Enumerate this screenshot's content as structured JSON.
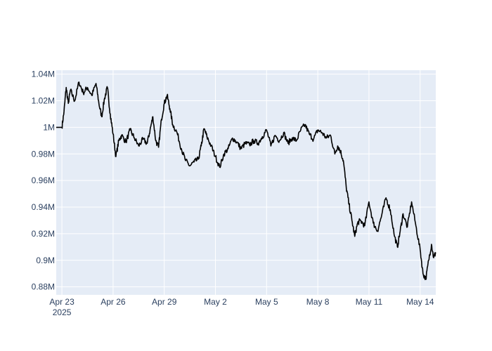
{
  "chart_data": {
    "type": "line",
    "title": "",
    "xlabel": "",
    "ylabel": "",
    "x_range": [
      "2025-04-22T16:00",
      "2025-05-14T22:00"
    ],
    "ylim": [
      874000,
      1043000
    ],
    "grid": true,
    "legend": "none",
    "x_ticks": [
      {
        "date": "2025-04-23",
        "label": "Apr 23",
        "sublabel": "2025"
      },
      {
        "date": "2025-04-26",
        "label": "Apr 26"
      },
      {
        "date": "2025-04-29",
        "label": "Apr 29"
      },
      {
        "date": "2025-05-02",
        "label": "May 2"
      },
      {
        "date": "2025-05-05",
        "label": "May 5"
      },
      {
        "date": "2025-05-08",
        "label": "May 8"
      },
      {
        "date": "2025-05-11",
        "label": "May 11"
      },
      {
        "date": "2025-05-14",
        "label": "May 14"
      }
    ],
    "y_ticks": [
      {
        "value": 880000,
        "label": "0.88M"
      },
      {
        "value": 900000,
        "label": "0.9M"
      },
      {
        "value": 920000,
        "label": "0.92M"
      },
      {
        "value": 940000,
        "label": "0.94M"
      },
      {
        "value": 960000,
        "label": "0.96M"
      },
      {
        "value": 980000,
        "label": "0.98M"
      },
      {
        "value": 1000000,
        "label": "1M"
      },
      {
        "value": 1020000,
        "label": "1.02M"
      },
      {
        "value": 1040000,
        "label": "1.04M"
      }
    ],
    "series": [
      {
        "color": "#000000",
        "points": [
          [
            "2025-04-22T16:00",
            1000000
          ],
          [
            "2025-04-23T00:00",
            1000000
          ],
          [
            "2025-04-23T03:00",
            1012000
          ],
          [
            "2025-04-23T06:00",
            1030000
          ],
          [
            "2025-04-23T09:00",
            1018000
          ],
          [
            "2025-04-23T12:00",
            1028000
          ],
          [
            "2025-04-23T18:00",
            1020000
          ],
          [
            "2025-04-24T00:00",
            1034000
          ],
          [
            "2025-04-24T06:00",
            1026000
          ],
          [
            "2025-04-24T12:00",
            1030000
          ],
          [
            "2025-04-24T18:00",
            1024000
          ],
          [
            "2025-04-25T00:00",
            1033000
          ],
          [
            "2025-04-25T04:00",
            1018000
          ],
          [
            "2025-04-25T08:00",
            1008000
          ],
          [
            "2025-04-25T12:00",
            1022000
          ],
          [
            "2025-04-25T16:00",
            1030000
          ],
          [
            "2025-04-25T20:00",
            1010000
          ],
          [
            "2025-04-26T00:00",
            995000
          ],
          [
            "2025-04-26T04:00",
            978000
          ],
          [
            "2025-04-26T08:00",
            990000
          ],
          [
            "2025-04-26T12:00",
            994000
          ],
          [
            "2025-04-26T18:00",
            989000
          ],
          [
            "2025-04-27T00:00",
            998000
          ],
          [
            "2025-04-27T06:00",
            992000
          ],
          [
            "2025-04-27T12:00",
            986000
          ],
          [
            "2025-04-27T18:00",
            991000
          ],
          [
            "2025-04-28T00:00",
            988000
          ],
          [
            "2025-04-28T04:00",
            998000
          ],
          [
            "2025-04-28T08:00",
            1008000
          ],
          [
            "2025-04-28T12:00",
            990000
          ],
          [
            "2025-04-28T16:00",
            985000
          ],
          [
            "2025-04-28T20:00",
            1006000
          ],
          [
            "2025-04-29T00:00",
            1018000
          ],
          [
            "2025-04-29T04:00",
            1024000
          ],
          [
            "2025-04-29T08:00",
            1014000
          ],
          [
            "2025-04-29T12:00",
            1002000
          ],
          [
            "2025-04-29T18:00",
            996000
          ],
          [
            "2025-04-30T00:00",
            984000
          ],
          [
            "2025-04-30T06:00",
            975000
          ],
          [
            "2025-04-30T12:00",
            971000
          ],
          [
            "2025-04-30T18:00",
            974000
          ],
          [
            "2025-05-01T00:00",
            976000
          ],
          [
            "2025-05-01T04:00",
            986000
          ],
          [
            "2025-05-01T08:00",
            999000
          ],
          [
            "2025-05-01T12:00",
            993000
          ],
          [
            "2025-05-01T18:00",
            986000
          ],
          [
            "2025-05-02T00:00",
            978000
          ],
          [
            "2025-05-02T06:00",
            970000
          ],
          [
            "2025-05-02T12:00",
            980000
          ],
          [
            "2025-05-02T18:00",
            984000
          ],
          [
            "2025-05-03T00:00",
            992000
          ],
          [
            "2025-05-03T06:00",
            989000
          ],
          [
            "2025-05-03T12:00",
            984000
          ],
          [
            "2025-05-03T18:00",
            988000
          ],
          [
            "2025-05-04T00:00",
            987000
          ],
          [
            "2025-05-04T06:00",
            990000
          ],
          [
            "2025-05-04T12:00",
            988000
          ],
          [
            "2025-05-04T18:00",
            993000
          ],
          [
            "2025-05-05T00:00",
            998000
          ],
          [
            "2025-05-05T06:00",
            986000
          ],
          [
            "2025-05-05T12:00",
            994000
          ],
          [
            "2025-05-05T18:00",
            990000
          ],
          [
            "2025-05-06T00:00",
            996000
          ],
          [
            "2025-05-06T06:00",
            988000
          ],
          [
            "2025-05-06T12:00",
            992000
          ],
          [
            "2025-05-06T18:00",
            990000
          ],
          [
            "2025-05-07T00:00",
            998000
          ],
          [
            "2025-05-07T06:00",
            1002000
          ],
          [
            "2025-05-07T12:00",
            995000
          ],
          [
            "2025-05-07T18:00",
            991000
          ],
          [
            "2025-05-08T00:00",
            998000
          ],
          [
            "2025-05-08T06:00",
            996000
          ],
          [
            "2025-05-08T12:00",
            992000
          ],
          [
            "2025-05-08T18:00",
            994000
          ],
          [
            "2025-05-09T00:00",
            980000
          ],
          [
            "2025-05-09T04:00",
            986000
          ],
          [
            "2025-05-09T08:00",
            982000
          ],
          [
            "2025-05-09T12:00",
            975000
          ],
          [
            "2025-05-09T16:00",
            955000
          ],
          [
            "2025-05-09T20:00",
            942000
          ],
          [
            "2025-05-10T00:00",
            930000
          ],
          [
            "2025-05-10T04:00",
            918000
          ],
          [
            "2025-05-10T08:00",
            928000
          ],
          [
            "2025-05-10T12:00",
            930000
          ],
          [
            "2025-05-10T18:00",
            926000
          ],
          [
            "2025-05-11T00:00",
            944000
          ],
          [
            "2025-05-11T06:00",
            928000
          ],
          [
            "2025-05-11T12:00",
            922000
          ],
          [
            "2025-05-11T18:00",
            934000
          ],
          [
            "2025-05-12T00:00",
            947000
          ],
          [
            "2025-05-12T06:00",
            938000
          ],
          [
            "2025-05-12T12:00",
            918000
          ],
          [
            "2025-05-12T16:00",
            910000
          ],
          [
            "2025-05-12T20:00",
            922000
          ],
          [
            "2025-05-13T00:00",
            935000
          ],
          [
            "2025-05-13T06:00",
            925000
          ],
          [
            "2025-05-13T12:00",
            944000
          ],
          [
            "2025-05-13T18:00",
            926000
          ],
          [
            "2025-05-14T00:00",
            908000
          ],
          [
            "2025-05-14T04:00",
            890000
          ],
          [
            "2025-05-14T08:00",
            886000
          ],
          [
            "2025-05-14T12:00",
            900000
          ],
          [
            "2025-05-14T16:00",
            912000
          ],
          [
            "2025-05-14T19:00",
            902000
          ],
          [
            "2025-05-14T22:00",
            906000
          ]
        ]
      }
    ]
  },
  "styles": {
    "plot_bg": "#e5ecf6",
    "grid_color": "#ffffff",
    "tick_color": "#2a3f5f",
    "line_color": "#000000"
  }
}
